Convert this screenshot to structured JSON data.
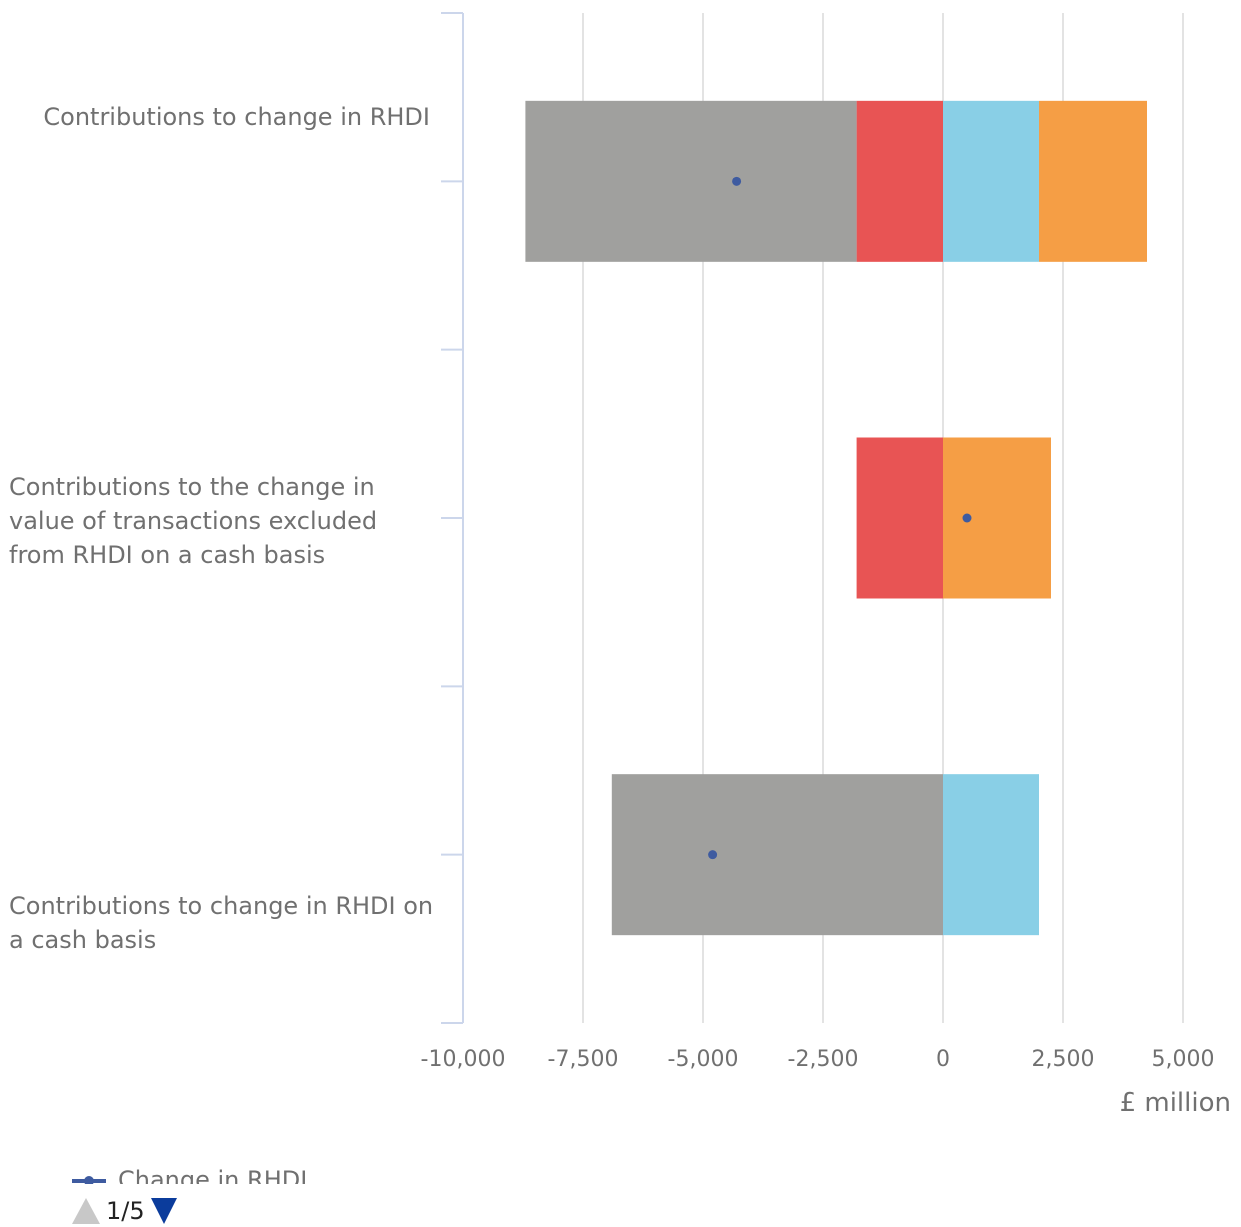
{
  "chart_data": {
    "type": "bar",
    "orientation": "horizontal",
    "stacked": true,
    "categories": [
      "Contributions to change in RHDI",
      "Contributions to the change in value of transactions excluded from RHDI on a cash basis",
      "Contributions to change in RHDI on a cash basis"
    ],
    "series": [
      {
        "color": "#e85454",
        "values": [
          -1800,
          -1800,
          0
        ]
      },
      {
        "color": "#a0a09e",
        "values": [
          -6900,
          0,
          -6900
        ]
      },
      {
        "color": "#89cfe6",
        "values": [
          2000,
          0,
          2000
        ]
      },
      {
        "color": "#f59e45",
        "values": [
          2250,
          2250,
          0
        ]
      }
    ],
    "markers": {
      "name": "Change in RHDI",
      "color": "#3e5ba0",
      "values": [
        -4300,
        500,
        -4800
      ]
    },
    "x_unit": "£ million",
    "xlim": [
      -10000,
      5000
    ],
    "x_ticks": [
      -10000,
      -7500,
      -5000,
      -2500,
      0,
      2500,
      5000
    ],
    "x_tick_labels": [
      "-10,000",
      "-7,500",
      "-5,000",
      "-2,500",
      "0",
      "2,500",
      "5,000"
    ],
    "grid": true,
    "legend_placement": "bottom"
  },
  "legend": {
    "label": "Change in RHDI"
  },
  "pager": {
    "text": "1/5"
  }
}
